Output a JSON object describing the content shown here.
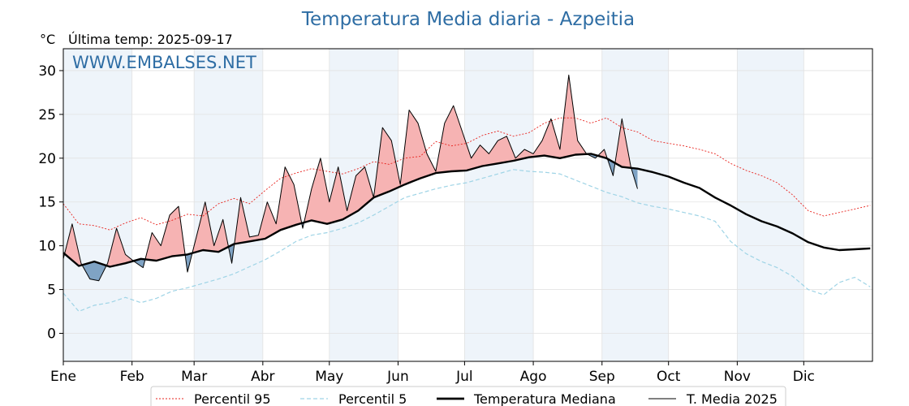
{
  "chart_data": {
    "type": "line",
    "title": "Temperatura Media diaria - Azpeitia",
    "unit": "°C",
    "last_temp_label": "Última temp: 2025-09-17",
    "watermark": "WWW.EMBALSES.NET",
    "xlabel": "",
    "ylabel": "",
    "ylim": [
      -3.2,
      32.5
    ],
    "yticks": [
      0,
      5,
      10,
      15,
      20,
      25,
      30
    ],
    "xlim": [
      1,
      366
    ],
    "month_labels": [
      "Ene",
      "Feb",
      "Mar",
      "Abr",
      "May",
      "Jun",
      "Jul",
      "Ago",
      "Sep",
      "Oct",
      "Nov",
      "Dic"
    ],
    "month_start_days": [
      1,
      32,
      60,
      91,
      121,
      152,
      182,
      213,
      244,
      274,
      305,
      335
    ],
    "grid": true,
    "legend_position": "bottom",
    "colors": {
      "p95": "#e8231e",
      "p5": "#9fd4e6",
      "median": "#000000",
      "current": "#000000",
      "above": "#f6b3b3",
      "below": "#7fa3c4",
      "shade": "#eef4fa",
      "title": "#2e6da4"
    },
    "series": [
      {
        "name": "Percentil 95",
        "style": "dotted-red",
        "x": [
          1,
          8,
          15,
          22,
          29,
          36,
          43,
          50,
          57,
          64,
          71,
          78,
          85,
          92,
          99,
          106,
          113,
          120,
          127,
          134,
          141,
          148,
          155,
          162,
          169,
          176,
          183,
          190,
          197,
          204,
          211,
          218,
          225,
          232,
          239,
          246,
          253,
          260,
          267,
          274,
          281,
          288,
          295,
          302,
          309,
          316,
          323,
          330,
          337,
          344,
          351,
          358,
          365
        ],
        "values": [
          14.8,
          12.5,
          12.3,
          11.8,
          12.6,
          13.2,
          12.4,
          12.9,
          13.6,
          13.4,
          14.8,
          15.4,
          14.8,
          16.3,
          17.7,
          18.3,
          18.8,
          18.5,
          18.2,
          18.8,
          19.6,
          19.3,
          20.0,
          20.2,
          21.9,
          21.4,
          21.7,
          22.6,
          23.1,
          22.5,
          22.9,
          24.0,
          24.6,
          24.6,
          24.0,
          24.6,
          23.5,
          23.0,
          22.0,
          21.7,
          21.4,
          21.0,
          20.5,
          19.4,
          18.6,
          18.0,
          17.2,
          15.8,
          14.0,
          13.4,
          13.8,
          14.2,
          14.6
        ]
      },
      {
        "name": "Percentil 5",
        "style": "dashed-lightblue",
        "x": [
          1,
          8,
          15,
          22,
          29,
          36,
          43,
          50,
          57,
          64,
          71,
          78,
          85,
          92,
          99,
          106,
          113,
          120,
          127,
          134,
          141,
          148,
          155,
          162,
          169,
          176,
          183,
          190,
          197,
          204,
          211,
          218,
          225,
          232,
          239,
          246,
          253,
          260,
          267,
          274,
          281,
          288,
          295,
          302,
          309,
          316,
          323,
          330,
          337,
          344,
          351,
          358,
          365
        ],
        "values": [
          4.6,
          2.5,
          3.2,
          3.5,
          4.1,
          3.5,
          4.0,
          4.8,
          5.2,
          5.7,
          6.2,
          6.8,
          7.6,
          8.4,
          9.4,
          10.5,
          11.2,
          11.5,
          12.0,
          12.6,
          13.5,
          14.5,
          15.5,
          16.0,
          16.5,
          16.9,
          17.2,
          17.7,
          18.2,
          18.7,
          18.5,
          18.4,
          18.2,
          17.5,
          16.8,
          16.1,
          15.6,
          14.9,
          14.5,
          14.2,
          13.8,
          13.4,
          12.8,
          10.5,
          9.1,
          8.2,
          7.5,
          6.5,
          5.0,
          4.4,
          5.8,
          6.4,
          5.3
        ]
      },
      {
        "name": "Temperatura Mediana",
        "style": "thick-black",
        "x": [
          1,
          8,
          15,
          22,
          29,
          36,
          43,
          50,
          57,
          64,
          71,
          78,
          85,
          92,
          99,
          106,
          113,
          120,
          127,
          134,
          141,
          148,
          155,
          162,
          169,
          176,
          183,
          190,
          197,
          204,
          211,
          218,
          225,
          232,
          239,
          246,
          253,
          260,
          267,
          274,
          281,
          288,
          295,
          302,
          309,
          316,
          323,
          330,
          337,
          344,
          351,
          358,
          365
        ],
        "values": [
          9.2,
          7.7,
          8.2,
          7.6,
          8.0,
          8.5,
          8.3,
          8.8,
          9.0,
          9.5,
          9.3,
          10.2,
          10.5,
          10.8,
          11.8,
          12.4,
          12.9,
          12.5,
          13.0,
          14.0,
          15.5,
          16.2,
          17.0,
          17.7,
          18.3,
          18.5,
          18.6,
          19.1,
          19.4,
          19.7,
          20.1,
          20.3,
          20.0,
          20.4,
          20.5,
          20.0,
          19.0,
          18.8,
          18.4,
          17.9,
          17.2,
          16.6,
          15.5,
          14.6,
          13.6,
          12.8,
          12.2,
          11.4,
          10.4,
          9.8,
          9.5,
          9.6,
          9.7
        ]
      },
      {
        "name": "T. Media 2025",
        "style": "thin-black",
        "x": [
          1,
          5,
          9,
          13,
          17,
          21,
          25,
          29,
          33,
          37,
          41,
          45,
          49,
          53,
          57,
          61,
          65,
          69,
          73,
          77,
          81,
          85,
          89,
          93,
          97,
          101,
          105,
          109,
          113,
          117,
          121,
          125,
          129,
          133,
          137,
          141,
          145,
          149,
          153,
          157,
          161,
          165,
          169,
          173,
          177,
          181,
          185,
          189,
          193,
          197,
          201,
          205,
          209,
          213,
          217,
          221,
          225,
          229,
          233,
          237,
          241,
          245,
          249,
          253,
          257,
          260
        ],
        "values": [
          8.5,
          12.5,
          8.0,
          6.2,
          6.0,
          8.0,
          12.0,
          9.0,
          8.2,
          7.5,
          11.5,
          10.0,
          13.5,
          14.5,
          7.0,
          11.0,
          15.0,
          10.0,
          13.0,
          8.0,
          15.5,
          11.0,
          11.2,
          15.0,
          12.5,
          19.0,
          17.0,
          12.0,
          16.5,
          20.0,
          15.0,
          19.0,
          14.0,
          18.0,
          19.0,
          15.5,
          23.5,
          22.0,
          17.0,
          25.5,
          24.0,
          20.5,
          18.5,
          24.0,
          26.0,
          23.0,
          20.0,
          21.5,
          20.5,
          22.0,
          22.5,
          20.0,
          21.0,
          20.5,
          22.0,
          24.5,
          21.0,
          29.5,
          22.0,
          20.5,
          20.0,
          21.0,
          18.0,
          24.5,
          19.0,
          16.5
        ]
      }
    ]
  }
}
